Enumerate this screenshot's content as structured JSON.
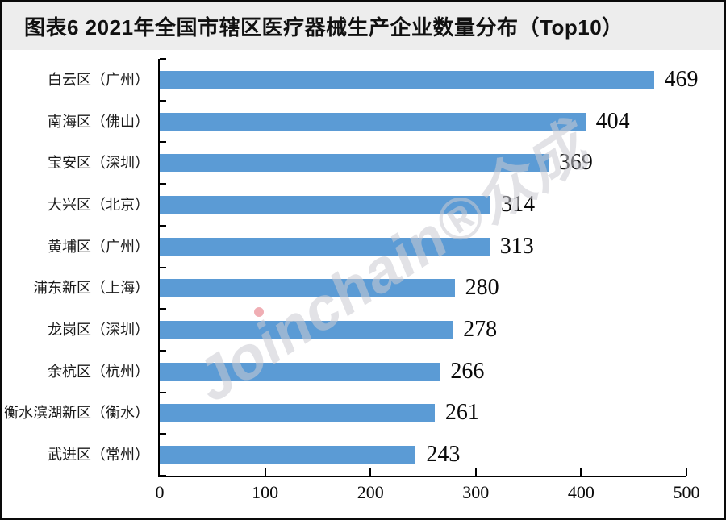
{
  "title": "图表6  2021年全国市辖区医疗器械生产企业数量分布（Top10）",
  "watermark": {
    "text": "Joinchain®众成"
  },
  "colors": {
    "bar": "#5B9BD5",
    "title_band_bg": "#EDEDED",
    "axis": "#000000",
    "watermark": "#CBCBD2",
    "frame_border": "#0A0A0A"
  },
  "chart_data": {
    "type": "bar",
    "orientation": "horizontal",
    "title": "图表6  2021年全国市辖区医疗器械生产企业数量分布（Top10）",
    "categories": [
      "白云区（广州）",
      "南海区（佛山）",
      "宝安区（深圳）",
      "大兴区（北京）",
      "黄埔区（广州）",
      "浦东新区（上海）",
      "龙岗区（深圳）",
      "余杭区（杭州）",
      "衡水滨湖新区（衡水）",
      "武进区（常州）"
    ],
    "values": [
      469,
      404,
      369,
      314,
      313,
      280,
      278,
      266,
      261,
      243
    ],
    "data_labels": [
      469,
      404,
      369,
      314,
      313,
      280,
      278,
      266,
      261,
      243
    ],
    "xlabel": "",
    "ylabel": "",
    "xlim": [
      0,
      500
    ],
    "x_ticks": [
      0,
      100,
      200,
      300,
      400,
      500
    ],
    "grid": false,
    "legend": false
  }
}
